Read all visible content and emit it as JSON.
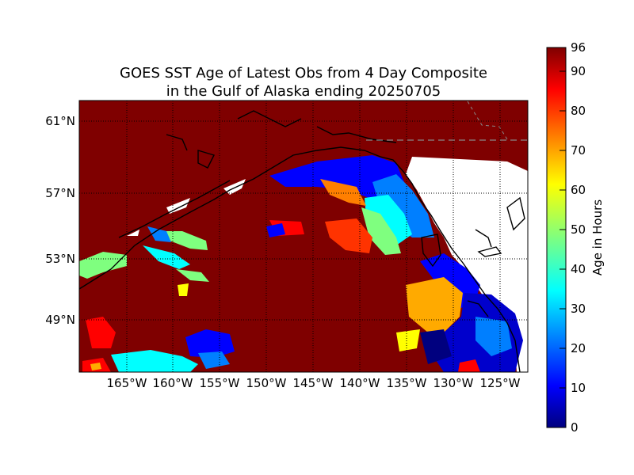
{
  "figure": {
    "title_line1": "GOES SST Age of Latest Obs from 4 Day Composite",
    "title_line2": "in the Gulf of Alaska ending 20250705"
  },
  "map": {
    "region": "Gulf of Alaska",
    "lat_labels": [
      "61°N",
      "57°N",
      "53°N",
      "49°N"
    ],
    "lon_labels": [
      "165°W",
      "160°W",
      "155°W",
      "150°W",
      "145°W",
      "140°W",
      "135°W",
      "130°W",
      "125°W"
    ],
    "gridlines": "dotted",
    "land_color": "#ffffff",
    "coastline_color": "#000000",
    "background_value_color": "#7f0000"
  },
  "colorbar": {
    "label": "Age in Hours",
    "ticks": [
      "0",
      "10",
      "20",
      "30",
      "40",
      "50",
      "60",
      "70",
      "80",
      "90",
      "96"
    ],
    "min": 0,
    "max": 96,
    "colormap": "jet",
    "colors": [
      "#00007f",
      "#0000ff",
      "#007fff",
      "#00ffff",
      "#7fff7f",
      "#ffff00",
      "#ff7f00",
      "#ff0000",
      "#7f0000"
    ]
  }
}
